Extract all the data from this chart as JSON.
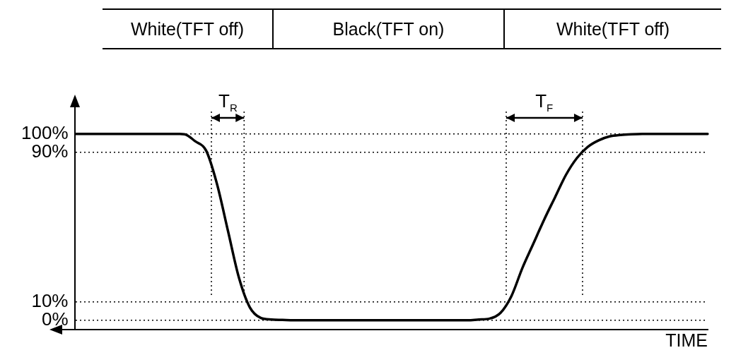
{
  "chart_data": {
    "type": "line",
    "xlabel": "TIME",
    "annotations": [
      "White(TFT off)",
      "Black(TFT on)",
      "White(TFT off)",
      "T$_{R}$",
      "T$_{F}$"
    ],
    "categories": [
      null,
      null,
      null,
      null,
      null,
      null,
      null,
      null,
      null,
      null,
      null,
      null,
      null,
      null,
      null,
      null,
      null,
      null,
      null,
      null,
      null,
      null,
      null,
      null,
      null,
      null,
      null,
      null,
      null,
      null,
      null,
      null,
      null,
      null,
      null,
      null,
      null,
      null,
      null,
      null,
      null,
      null,
      null,
      null,
      null,
      null,
      null,
      null,
      null,
      null,
      null,
      null,
      null,
      null,
      null,
      null,
      null,
      null,
      null
    ],
    "series": [
      {
        "color": "#000000",
        "values": [
          100,
          100,
          100,
          100,
          100,
          100,
          100,
          100,
          100,
          100,
          99.8,
          96,
          91,
          73,
          48,
          23,
          7,
          1.3,
          0.4,
          0.2,
          0,
          0,
          0,
          0,
          0,
          0,
          0,
          0,
          0,
          0,
          0,
          0,
          0,
          0,
          0,
          0,
          0,
          0.4,
          0.9,
          4,
          13,
          28,
          41,
          54,
          66,
          78,
          87,
          93,
          96.5,
          98.6,
          99.4,
          99.8,
          100,
          100,
          100,
          100,
          100,
          100,
          100
        ]
      }
    ],
    "ylim": [
      -5,
      115
    ],
    "yticks": [
      {
        "value": 0,
        "label": "0%"
      },
      {
        "value": 10,
        "label": "10%"
      },
      {
        "value": 90,
        "label": "90%"
      },
      {
        "value": 100,
        "label": "100%"
      }
    ],
    "grid": "y",
    "tick_labels": "y",
    "marker": "none"
  }
}
